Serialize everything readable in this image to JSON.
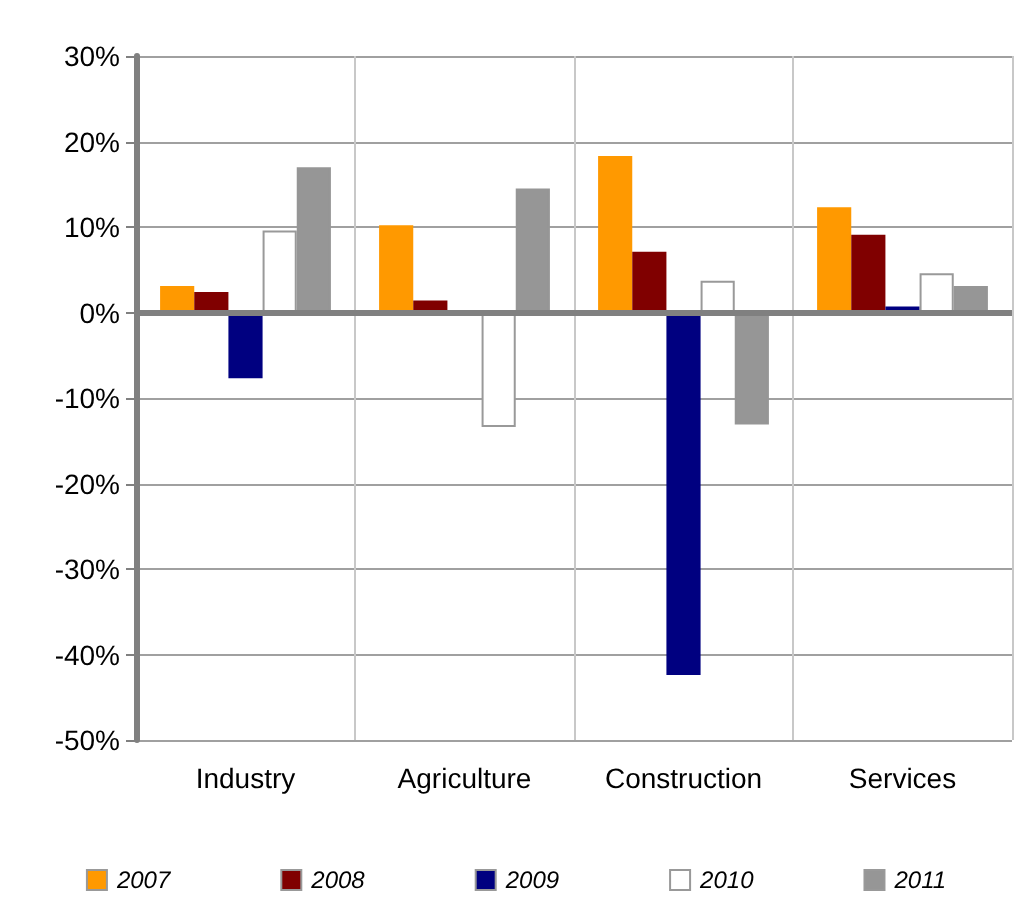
{
  "chart_data": {
    "type": "bar",
    "categories": [
      "Industry",
      "Agriculture",
      "Construction",
      "Services"
    ],
    "series": [
      {
        "name": "2007",
        "color": "#ff9900",
        "values": [
          3.1,
          10.2,
          18.3,
          12.3
        ]
      },
      {
        "name": "2008",
        "color": "#800000",
        "values": [
          2.4,
          1.4,
          7.1,
          9.1
        ]
      },
      {
        "name": "2009",
        "color": "#000080",
        "values": [
          -7.7,
          null,
          -42.4,
          0.7
        ]
      },
      {
        "name": "2010",
        "color": "#ffffff",
        "values": [
          9.6,
          -13.4,
          3.7,
          4.6
        ]
      },
      {
        "name": "2011",
        "color": "#969696",
        "values": [
          17,
          14.5,
          -13.1,
          3.1
        ]
      }
    ],
    "ylim": [
      -50,
      30
    ],
    "yticks": [
      {
        "value": -50,
        "label": "-50%"
      },
      {
        "value": -40,
        "label": "-40%"
      },
      {
        "value": -30,
        "label": "-30%"
      },
      {
        "value": -20,
        "label": "-20%"
      },
      {
        "value": -10,
        "label": "-10%"
      },
      {
        "value": 0,
        "label": "0%"
      },
      {
        "value": 10,
        "label": "10%"
      },
      {
        "value": 20,
        "label": "20%"
      },
      {
        "value": 30,
        "label": "30%"
      }
    ],
    "grid": true,
    "legend": "bottom"
  }
}
